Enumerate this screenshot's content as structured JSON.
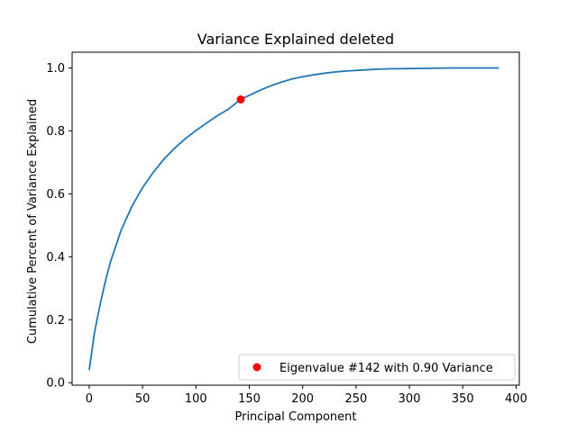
{
  "chart_data": {
    "type": "line",
    "title": "Variance Explained deleted",
    "xlabel": "Principal Component",
    "ylabel": "Cumulative Percent of Variance Explained",
    "xlim": [
      -16,
      403
    ],
    "ylim": [
      -0.008,
      1.05
    ],
    "xticks": [
      0,
      50,
      100,
      150,
      200,
      250,
      300,
      350,
      400
    ],
    "yticks": [
      0.0,
      0.2,
      0.4,
      0.6,
      0.8,
      1.0
    ],
    "xtick_labels": [
      "0",
      "50",
      "100",
      "150",
      "200",
      "250",
      "300",
      "350",
      "400"
    ],
    "ytick_labels": [
      "0.0",
      "0.2",
      "0.4",
      "0.6",
      "0.8",
      "1.0"
    ],
    "grid": false,
    "legend_position": "lower-right",
    "series": [
      {
        "color": "#1f77b4",
        "x": [
          0,
          5,
          10,
          15,
          20,
          30,
          40,
          50,
          60,
          70,
          80,
          90,
          100,
          110,
          120,
          130,
          142,
          150,
          160,
          170,
          180,
          190,
          200,
          210,
          220,
          230,
          240,
          250,
          260,
          270,
          280,
          300,
          320,
          340,
          360,
          384
        ],
        "y": [
          0.04,
          0.16,
          0.245,
          0.32,
          0.385,
          0.485,
          0.56,
          0.62,
          0.668,
          0.71,
          0.745,
          0.775,
          0.801,
          0.825,
          0.848,
          0.868,
          0.9,
          0.913,
          0.929,
          0.943,
          0.955,
          0.965,
          0.972,
          0.978,
          0.983,
          0.987,
          0.99,
          0.992,
          0.994,
          0.996,
          0.997,
          0.998,
          0.999,
          1.0,
          1.0,
          1.0
        ]
      }
    ],
    "highlight_point": {
      "x": 142,
      "y": 0.9,
      "color": "#ff0000",
      "label": "Eigenvalue #142 with 0.90 Variance"
    }
  }
}
